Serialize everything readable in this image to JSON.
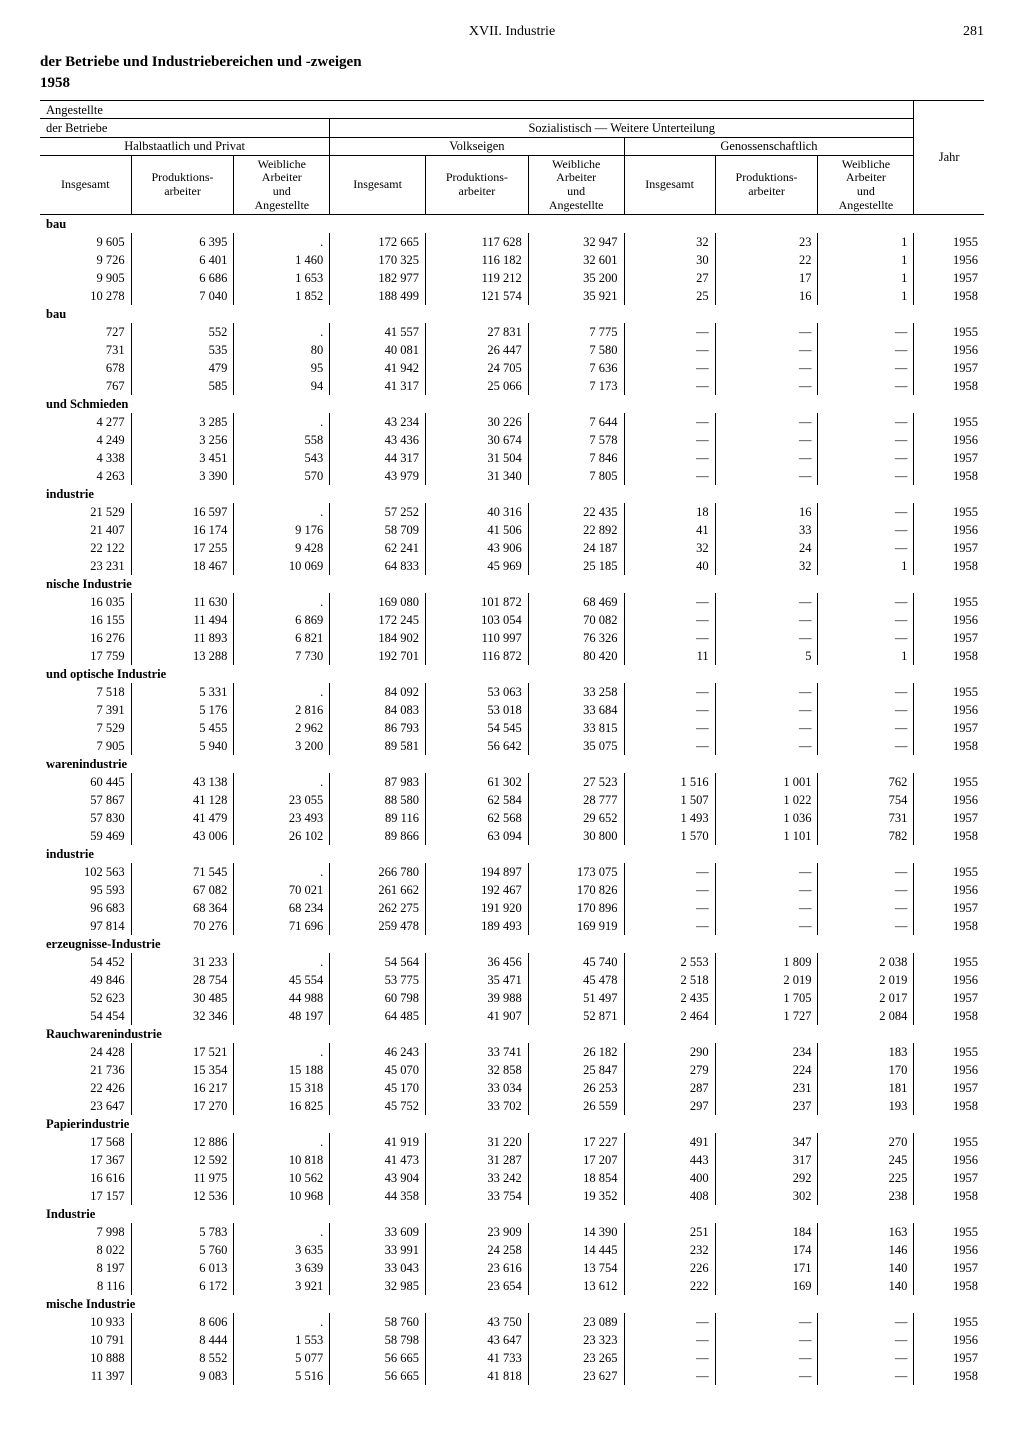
{
  "page": {
    "chapter": "XVII. Industrie",
    "number": "281",
    "title": "der Betriebe und Industriebereichen und -zweigen",
    "year": "1958"
  },
  "headers": {
    "angestellte": "Angestellte",
    "derBetriebe": "der Betriebe",
    "sozWeit": "Sozialistisch — Weitere Unterteilung",
    "halbPrivat": "Halbstaatlich und Privat",
    "volkseigen": "Volkseigen",
    "genossen": "Genossenschaftlich",
    "jahr": "Jahr",
    "insgesamt": "Insgesamt",
    "prodArb": "Produktions-\narbeiter",
    "weibl": "Weibliche\nArbeiter\nund\nAngestellte"
  },
  "sections": [
    {
      "label": "bau",
      "rows": [
        [
          "9 605",
          "6 395",
          ".",
          "172 665",
          "117 628",
          "32 947",
          "32",
          "23",
          "1",
          "1955"
        ],
        [
          "9 726",
          "6 401",
          "1 460",
          "170 325",
          "116 182",
          "32 601",
          "30",
          "22",
          "1",
          "1956"
        ],
        [
          "9 905",
          "6 686",
          "1 653",
          "182 977",
          "119 212",
          "35 200",
          "27",
          "17",
          "1",
          "1957"
        ],
        [
          "10 278",
          "7 040",
          "1 852",
          "188 499",
          "121 574",
          "35 921",
          "25",
          "16",
          "1",
          "1958"
        ]
      ]
    },
    {
      "label": "bau",
      "rows": [
        [
          "727",
          "552",
          ".",
          "41 557",
          "27 831",
          "7 775",
          "—",
          "—",
          "—",
          "1955"
        ],
        [
          "731",
          "535",
          "80",
          "40 081",
          "26 447",
          "7 580",
          "—",
          "—",
          "—",
          "1956"
        ],
        [
          "678",
          "479",
          "95",
          "41 942",
          "24 705",
          "7 636",
          "—",
          "—",
          "—",
          "1957"
        ],
        [
          "767",
          "585",
          "94",
          "41 317",
          "25 066",
          "7 173",
          "—",
          "—",
          "—",
          "1958"
        ]
      ]
    },
    {
      "label": "und Schmieden",
      "rows": [
        [
          "4 277",
          "3 285",
          ".",
          "43 234",
          "30 226",
          "7 644",
          "—",
          "—",
          "—",
          "1955"
        ],
        [
          "4 249",
          "3 256",
          "558",
          "43 436",
          "30 674",
          "7 578",
          "—",
          "—",
          "—",
          "1956"
        ],
        [
          "4 338",
          "3 451",
          "543",
          "44 317",
          "31 504",
          "7 846",
          "—",
          "—",
          "—",
          "1957"
        ],
        [
          "4 263",
          "3 390",
          "570",
          "43 979",
          "31 340",
          "7 805",
          "—",
          "—",
          "—",
          "1958"
        ]
      ]
    },
    {
      "label": "industrie",
      "rows": [
        [
          "21 529",
          "16 597",
          ".",
          "57 252",
          "40 316",
          "22 435",
          "18",
          "16",
          "—",
          "1955"
        ],
        [
          "21 407",
          "16 174",
          "9 176",
          "58 709",
          "41 506",
          "22 892",
          "41",
          "33",
          "—",
          "1956"
        ],
        [
          "22 122",
          "17 255",
          "9 428",
          "62 241",
          "43 906",
          "24 187",
          "32",
          "24",
          "—",
          "1957"
        ],
        [
          "23 231",
          "18 467",
          "10 069",
          "64 833",
          "45 969",
          "25 185",
          "40",
          "32",
          "1",
          "1958"
        ]
      ]
    },
    {
      "label": "nische Industrie",
      "rows": [
        [
          "16 035",
          "11 630",
          ".",
          "169 080",
          "101 872",
          "68 469",
          "—",
          "—",
          "—",
          "1955"
        ],
        [
          "16 155",
          "11 494",
          "6 869",
          "172 245",
          "103 054",
          "70 082",
          "—",
          "—",
          "—",
          "1956"
        ],
        [
          "16 276",
          "11 893",
          "6 821",
          "184 902",
          "110 997",
          "76 326",
          "—",
          "—",
          "—",
          "1957"
        ],
        [
          "17 759",
          "13 288",
          "7 730",
          "192 701",
          "116 872",
          "80 420",
          "11",
          "5",
          "1",
          "1958"
        ]
      ]
    },
    {
      "label": "und optische Industrie",
      "rows": [
        [
          "7 518",
          "5 331",
          ".",
          "84 092",
          "53 063",
          "33 258",
          "—",
          "—",
          "—",
          "1955"
        ],
        [
          "7 391",
          "5 176",
          "2 816",
          "84 083",
          "53 018",
          "33 684",
          "—",
          "—",
          "—",
          "1956"
        ],
        [
          "7 529",
          "5 455",
          "2 962",
          "86 793",
          "54 545",
          "33 815",
          "—",
          "—",
          "—",
          "1957"
        ],
        [
          "7 905",
          "5 940",
          "3 200",
          "89 581",
          "56 642",
          "35 075",
          "—",
          "—",
          "—",
          "1958"
        ]
      ]
    },
    {
      "label": "warenindustrie",
      "rows": [
        [
          "60 445",
          "43 138",
          ".",
          "87 983",
          "61 302",
          "27 523",
          "1 516",
          "1 001",
          "762",
          "1955"
        ],
        [
          "57 867",
          "41 128",
          "23 055",
          "88 580",
          "62 584",
          "28 777",
          "1 507",
          "1 022",
          "754",
          "1956"
        ],
        [
          "57 830",
          "41 479",
          "23 493",
          "89 116",
          "62 568",
          "29 652",
          "1 493",
          "1 036",
          "731",
          "1957"
        ],
        [
          "59 469",
          "43 006",
          "26 102",
          "89 866",
          "63 094",
          "30 800",
          "1 570",
          "1 101",
          "782",
          "1958"
        ]
      ]
    },
    {
      "label": "industrie",
      "rows": [
        [
          "102 563",
          "71 545",
          ".",
          "266 780",
          "194 897",
          "173 075",
          "—",
          "—",
          "—",
          "1955"
        ],
        [
          "95 593",
          "67 082",
          "70 021",
          "261 662",
          "192 467",
          "170 826",
          "—",
          "—",
          "—",
          "1956"
        ],
        [
          "96 683",
          "68 364",
          "68 234",
          "262 275",
          "191 920",
          "170 896",
          "—",
          "—",
          "—",
          "1957"
        ],
        [
          "97 814",
          "70 276",
          "71 696",
          "259 478",
          "189 493",
          "169 919",
          "—",
          "—",
          "—",
          "1958"
        ]
      ]
    },
    {
      "label": "erzeugnisse-Industrie",
      "rows": [
        [
          "54 452",
          "31 233",
          ".",
          "54 564",
          "36 456",
          "45 740",
          "2 553",
          "1 809",
          "2 038",
          "1955"
        ],
        [
          "49 846",
          "28 754",
          "45 554",
          "53 775",
          "35 471",
          "45 478",
          "2 518",
          "2 019",
          "2 019",
          "1956"
        ],
        [
          "52 623",
          "30 485",
          "44 988",
          "60 798",
          "39 988",
          "51 497",
          "2 435",
          "1 705",
          "2 017",
          "1957"
        ],
        [
          "54 454",
          "32 346",
          "48 197",
          "64 485",
          "41 907",
          "52 871",
          "2 464",
          "1 727",
          "2 084",
          "1958"
        ]
      ]
    },
    {
      "label": "Rauchwarenindustrie",
      "rows": [
        [
          "24 428",
          "17 521",
          ".",
          "46 243",
          "33 741",
          "26 182",
          "290",
          "234",
          "183",
          "1955"
        ],
        [
          "21 736",
          "15 354",
          "15 188",
          "45 070",
          "32 858",
          "25 847",
          "279",
          "224",
          "170",
          "1956"
        ],
        [
          "22 426",
          "16 217",
          "15 318",
          "45 170",
          "33 034",
          "26 253",
          "287",
          "231",
          "181",
          "1957"
        ],
        [
          "23 647",
          "17 270",
          "16 825",
          "45 752",
          "33 702",
          "26 559",
          "297",
          "237",
          "193",
          "1958"
        ]
      ]
    },
    {
      "label": "Papierindustrie",
      "rows": [
        [
          "17 568",
          "12 886",
          ".",
          "41 919",
          "31 220",
          "17 227",
          "491",
          "347",
          "270",
          "1955"
        ],
        [
          "17 367",
          "12 592",
          "10 818",
          "41 473",
          "31 287",
          "17 207",
          "443",
          "317",
          "245",
          "1956"
        ],
        [
          "16 616",
          "11 975",
          "10 562",
          "43 904",
          "33 242",
          "18 854",
          "400",
          "292",
          "225",
          "1957"
        ],
        [
          "17 157",
          "12 536",
          "10 968",
          "44 358",
          "33 754",
          "19 352",
          "408",
          "302",
          "238",
          "1958"
        ]
      ]
    },
    {
      "label": "Industrie",
      "rows": [
        [
          "7 998",
          "5 783",
          ".",
          "33 609",
          "23 909",
          "14 390",
          "251",
          "184",
          "163",
          "1955"
        ],
        [
          "8 022",
          "5 760",
          "3 635",
          "33 991",
          "24 258",
          "14 445",
          "232",
          "174",
          "146",
          "1956"
        ],
        [
          "8 197",
          "6 013",
          "3 639",
          "33 043",
          "23 616",
          "13 754",
          "226",
          "171",
          "140",
          "1957"
        ],
        [
          "8 116",
          "6 172",
          "3 921",
          "32 985",
          "23 654",
          "13 612",
          "222",
          "169",
          "140",
          "1958"
        ]
      ]
    },
    {
      "label": "mische Industrie",
      "rows": [
        [
          "10 933",
          "8 606",
          ".",
          "58 760",
          "43 750",
          "23 089",
          "—",
          "—",
          "—",
          "1955"
        ],
        [
          "10 791",
          "8 444",
          "1 553",
          "58 798",
          "43 647",
          "23 323",
          "—",
          "—",
          "—",
          "1956"
        ],
        [
          "10 888",
          "8 552",
          "5 077",
          "56 665",
          "41 733",
          "23 265",
          "—",
          "—",
          "—",
          "1957"
        ],
        [
          "11 397",
          "9 083",
          "5 516",
          "56 665",
          "41 818",
          "23 627",
          "—",
          "—",
          "—",
          "1958"
        ]
      ]
    }
  ],
  "style": {
    "text_color": "#000000",
    "background_color": "#ffffff",
    "rule_color": "#000000",
    "font_family": "Times New Roman",
    "body_fontsize_pt": 9,
    "header_fontsize_pt": 9,
    "title_fontsize_pt": 11
  }
}
